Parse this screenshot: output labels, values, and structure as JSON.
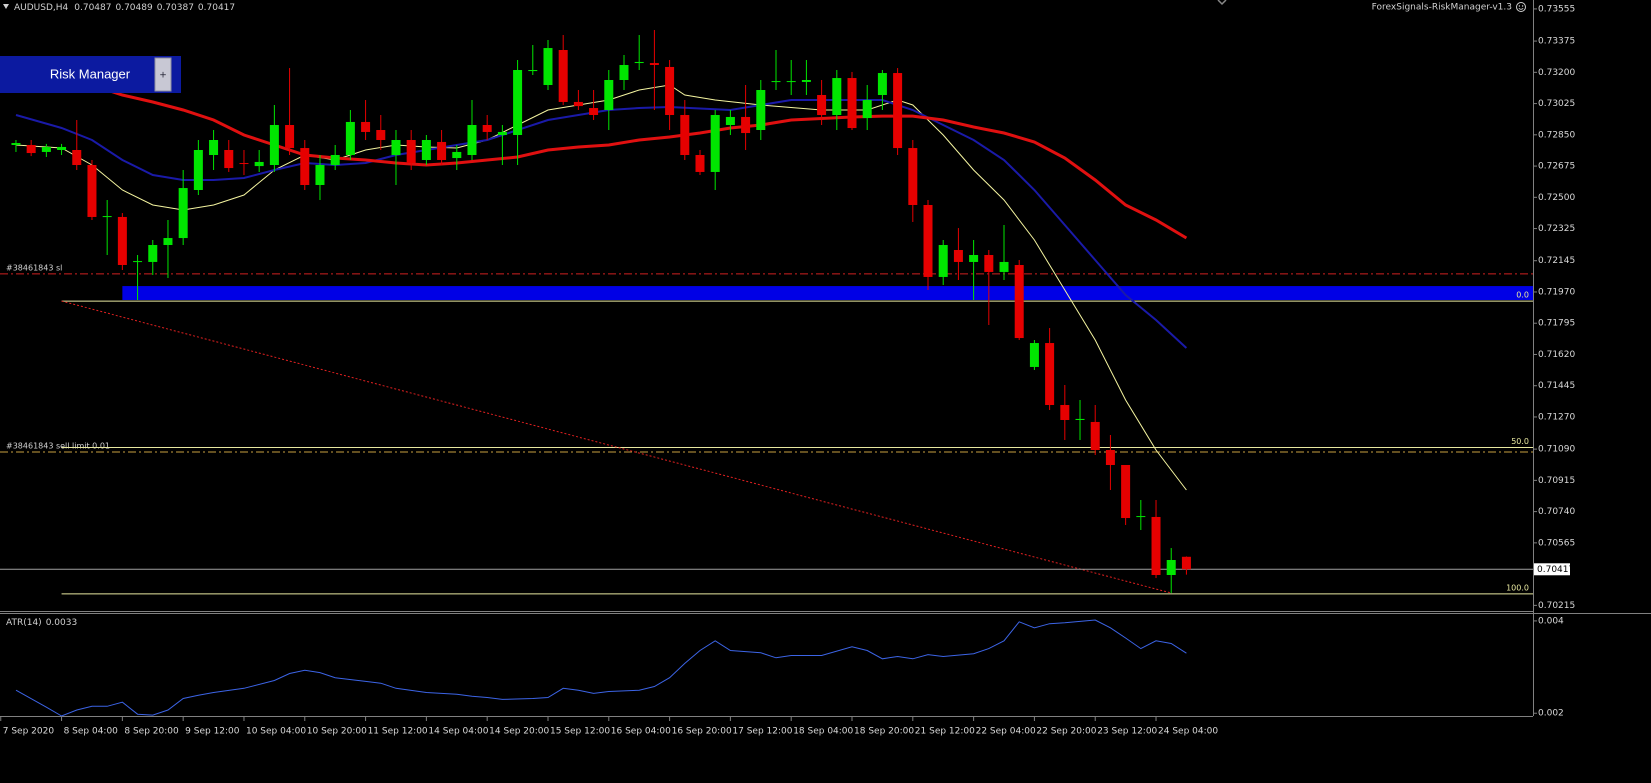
{
  "chart_data": [
    {
      "type": "candlestick",
      "title": "AUDUSD,H4",
      "open": [
        0.72793,
        0.72793,
        0.72754,
        0.72765,
        0.72765,
        0.72681,
        0.7239,
        0.7239,
        0.72138,
        0.72138,
        0.72233,
        0.72272,
        0.72541,
        0.72737,
        0.72765,
        0.72692,
        0.72675,
        0.72681,
        0.72905,
        0.72776,
        0.72569,
        0.72681,
        0.72737,
        0.72922,
        0.72877,
        0.72737,
        0.72821,
        0.72709,
        0.7281,
        0.7272,
        0.72737,
        0.72905,
        0.72849,
        0.72849,
        0.73207,
        0.73129,
        0.73325,
        0.73034,
        0.73,
        0.72989,
        0.73157,
        0.73252,
        0.73252,
        0.7323,
        0.72961,
        0.72737,
        0.72642,
        0.72905,
        0.7295,
        0.72877,
        0.73146,
        0.73146,
        0.73146,
        0.73073,
        0.72961,
        0.73168,
        0.72944,
        0.73073,
        0.73196,
        0.72776,
        0.72457,
        0.72054,
        0.72205,
        0.72138,
        0.72177,
        0.72082,
        0.72121,
        0.7155,
        0.71684,
        0.71337,
        0.71253,
        0.71242,
        0.71085,
        0.71001,
        0.7071,
        0.7071,
        0.70385,
        0.70487
      ],
      "high": [
        0.72821,
        0.72821,
        0.72799,
        0.72799,
        0.72933,
        0.72709,
        0.72485,
        0.72412,
        0.72177,
        0.72261,
        0.72373,
        0.72653,
        0.72821,
        0.72877,
        0.72821,
        0.72765,
        0.72765,
        0.73017,
        0.73224,
        0.72821,
        0.72737,
        0.72793,
        0.72989,
        0.73045,
        0.72961,
        0.72877,
        0.72877,
        0.72849,
        0.72877,
        0.72793,
        0.73045,
        0.72961,
        0.72905,
        0.73269,
        0.73353,
        0.73381,
        0.73409,
        0.73101,
        0.73101,
        0.73213,
        0.73297,
        0.73409,
        0.73437,
        0.73269,
        0.73045,
        0.72765,
        0.72989,
        0.72989,
        0.73129,
        0.73157,
        0.73325,
        0.73269,
        0.73269,
        0.73157,
        0.73213,
        0.73202,
        0.73129,
        0.73213,
        0.73224,
        0.72821,
        0.72485,
        0.72261,
        0.72328,
        0.72261,
        0.72205,
        0.72345,
        0.72149,
        0.71701,
        0.71768,
        0.71449,
        0.71365,
        0.71337,
        0.71169,
        0.71001,
        0.70805,
        0.70805,
        0.70536,
        0.70489
      ],
      "low": [
        0.72754,
        0.72731,
        0.72726,
        0.72737,
        0.72653,
        0.72373,
        0.72177,
        0.72093,
        0.71925,
        0.72065,
        0.72048,
        0.72233,
        0.72513,
        0.72653,
        0.72642,
        0.72625,
        0.72642,
        0.72642,
        0.72737,
        0.72541,
        0.72485,
        0.72653,
        0.72709,
        0.72821,
        0.72765,
        0.72569,
        0.72653,
        0.72681,
        0.72681,
        0.72653,
        0.72709,
        0.72821,
        0.72681,
        0.72681,
        0.73185,
        0.73101,
        0.73017,
        0.72989,
        0.72933,
        0.72877,
        0.73101,
        0.73213,
        0.72989,
        0.72877,
        0.72709,
        0.72625,
        0.72541,
        0.72849,
        0.72765,
        0.72821,
        0.73101,
        0.73073,
        0.73073,
        0.72905,
        0.72877,
        0.72877,
        0.72877,
        0.72989,
        0.72737,
        0.72362,
        0.71981,
        0.72009,
        0.72037,
        0.71925,
        0.71785,
        0.72037,
        0.71701,
        0.71533,
        0.71309,
        0.71141,
        0.71141,
        0.71057,
        0.70861,
        0.70665,
        0.70637,
        0.70368,
        0.70284,
        0.70387
      ],
      "close": [
        0.72804,
        0.72748,
        0.72782,
        0.72782,
        0.72681,
        0.7239,
        0.72395,
        0.72121,
        0.72143,
        0.72233,
        0.72272,
        0.72552,
        0.72765,
        0.72821,
        0.72664,
        0.72687,
        0.72698,
        0.72905,
        0.72776,
        0.72569,
        0.72681,
        0.72737,
        0.72922,
        0.72866,
        0.72821,
        0.72821,
        0.72692,
        0.72821,
        0.72709,
        0.72754,
        0.72905,
        0.72866,
        0.72866,
        0.73213,
        0.73213,
        0.73336,
        0.73034,
        0.73011,
        0.72961,
        0.73157,
        0.73241,
        0.73258,
        0.73241,
        0.72961,
        0.72737,
        0.72642,
        0.72961,
        0.7295,
        0.7286,
        0.73101,
        0.73151,
        0.73151,
        0.73157,
        0.72961,
        0.73168,
        0.72888,
        0.73045,
        0.73196,
        0.72776,
        0.72457,
        0.72054,
        0.72233,
        0.72138,
        0.72177,
        0.72082,
        0.72138,
        0.71712,
        0.71684,
        0.71337,
        0.71253,
        0.71259,
        0.71085,
        0.71001,
        0.70704,
        0.70715,
        0.70385,
        0.70469,
        0.70417
      ],
      "up_color": "#00e600",
      "down_color": "#e60000",
      "series": [
        {
          "color": "#f5f5a0",
          "x": [
            0,
            3,
            5,
            7,
            9,
            11,
            13,
            15,
            17,
            19,
            21,
            23,
            25,
            27,
            29,
            31,
            33,
            35,
            37,
            39,
            41,
            43,
            44,
            46,
            49,
            53,
            56,
            58,
            59,
            61,
            63,
            65,
            67,
            69,
            71,
            73,
            75,
            77
          ],
          "values": [
            0.72793,
            0.72776,
            0.72681,
            0.72541,
            0.72457,
            0.72429,
            0.72457,
            0.72513,
            0.72653,
            0.72737,
            0.72709,
            0.72765,
            0.72793,
            0.72782,
            0.72776,
            0.72821,
            0.72905,
            0.72989,
            0.73017,
            0.73045,
            0.73101,
            0.73129,
            0.73073,
            0.73045,
            0.73017,
            0.72989,
            0.72989,
            0.73045,
            0.73017,
            0.72849,
            0.72653,
            0.72485,
            0.72261,
            0.71981,
            0.71701,
            0.71365,
            0.71085,
            0.70861
          ],
          "width": 1
        },
        {
          "color": "#1a1aa8",
          "x": [
            0,
            3,
            5,
            7,
            9,
            11,
            13,
            15,
            17,
            19,
            21,
            23,
            25,
            27,
            29,
            31,
            33,
            35,
            37,
            39,
            41,
            43,
            47,
            49,
            51,
            55,
            57,
            59,
            61,
            63,
            65,
            67,
            69,
            71,
            73,
            75,
            77
          ],
          "values": [
            0.72961,
            0.72888,
            0.72821,
            0.72709,
            0.72625,
            0.72597,
            0.72597,
            0.72608,
            0.72653,
            0.72692,
            0.72681,
            0.72692,
            0.72737,
            0.72765,
            0.72793,
            0.72821,
            0.72877,
            0.72933,
            0.72961,
            0.72989,
            0.73,
            0.73006,
            0.72989,
            0.73017,
            0.73045,
            0.73045,
            0.73045,
            0.72989,
            0.72905,
            0.72821,
            0.72709,
            0.72541,
            0.72345,
            0.72149,
            0.71953,
            0.71813,
            0.71656
          ],
          "width": 2
        },
        {
          "color": "#e01010",
          "x": [
            0,
            7,
            9,
            11,
            13,
            15,
            17,
            19,
            21,
            23,
            25,
            27,
            29,
            31,
            33,
            35,
            37,
            39,
            41,
            43,
            45,
            47,
            49,
            51,
            55,
            57,
            59,
            61,
            63,
            65,
            67,
            69,
            71,
            73,
            75,
            77
          ],
          "values": [
            0.73269,
            0.73073,
            0.73034,
            0.72989,
            0.72933,
            0.72849,
            0.72793,
            0.72737,
            0.7272,
            0.72709,
            0.72692,
            0.72681,
            0.72692,
            0.72709,
            0.72726,
            0.72765,
            0.72782,
            0.72793,
            0.72821,
            0.72838,
            0.7286,
            0.72888,
            0.72905,
            0.72933,
            0.7295,
            0.72955,
            0.72955,
            0.72933,
            0.72894,
            0.7286,
            0.7281,
            0.7272,
            0.72597,
            0.72457,
            0.72373,
            0.72272
          ],
          "width": 3
        }
      ],
      "levels": [
        {
          "label": "#38461843 sl",
          "value": 0.72071,
          "color": "#d02020"
        },
        {
          "label": "#38461843 sell limit 0.01",
          "value": 0.71074,
          "color": "#c8a040"
        }
      ],
      "fib_levels": [
        {
          "label": "0.0",
          "price": 0.71919
        },
        {
          "label": "50.0",
          "price": 0.71099
        },
        {
          "label": "100.0",
          "price": 0.70279
        }
      ],
      "fib_start": 3,
      "fib_color": "#e8e8a0",
      "trendline": {
        "x": [
          3,
          76
        ],
        "values": [
          0.71919,
          0.70284
        ],
        "color": "#e02020"
      },
      "zone": {
        "x": 7,
        "values": [
          0.71925,
          0.72003
        ],
        "color": "#0000e6"
      },
      "ylim": [
        0.70189,
        0.73605
      ],
      "yticks": [
        0.73555,
        0.73375,
        {
          "value": 0.732,
          "label": "0.73200"
        },
        0.73025,
        {
          "value": 0.7285,
          "label": "0.72850"
        },
        0.72675,
        {
          "value": 0.725,
          "label": "0.72500"
        },
        0.72325,
        0.72145,
        {
          "value": 0.7197,
          "label": "0.71970"
        },
        0.71795,
        {
          "value": 0.7162,
          "label": "0.71620"
        },
        0.71445,
        {
          "value": 0.7127,
          "label": "0.71270"
        },
        {
          "value": 0.7109,
          "label": "0.71090"
        },
        0.70915,
        {
          "value": 0.7074,
          "label": "0.70740"
        },
        0.70565,
        0.70215
      ],
      "xlim": [
        -1.05,
        99.8
      ],
      "xticks": [
        {
          "value": -1,
          "label": "7 Sep 2020"
        },
        {
          "value": 3,
          "label": "8 Sep 04:00"
        },
        {
          "value": 7,
          "label": "8 Sep 20:00"
        },
        {
          "value": 11,
          "label": "9 Sep 12:00"
        },
        {
          "value": 15,
          "label": "10 Sep 04:00"
        },
        {
          "value": 19,
          "label": "10 Sep 20:00"
        },
        {
          "value": 23,
          "label": "11 Sep 12:00"
        },
        {
          "value": 27,
          "label": "14 Sep 04:00"
        },
        {
          "value": 31,
          "label": "14 Sep 20:00"
        },
        {
          "value": 35,
          "label": "15 Sep 12:00"
        },
        {
          "value": 39,
          "label": "16 Sep 04:00"
        },
        {
          "value": 43,
          "label": "16 Sep 20:00"
        },
        {
          "value": 47,
          "label": "17 Sep 12:00"
        },
        {
          "value": 51,
          "label": "18 Sep 04:00"
        },
        {
          "value": 55,
          "label": "18 Sep 20:00"
        },
        {
          "value": 59,
          "label": "21 Sep 12:00"
        },
        {
          "value": 63,
          "label": "22 Sep 04:00"
        },
        {
          "value": 67,
          "label": "22 Sep 20:00"
        },
        {
          "value": 71,
          "label": "23 Sep 12:00"
        },
        {
          "value": 75,
          "label": "24 Sep 04:00"
        }
      ]
    },
    {
      "type": "line",
      "title": "ATR(14)",
      "color": "#3c64e6",
      "x": [
        0,
        2,
        3,
        4,
        5,
        6,
        7,
        8,
        9,
        10,
        11,
        12,
        13,
        15,
        17,
        18,
        19,
        20,
        21,
        23,
        24,
        25,
        27,
        29,
        30,
        31,
        32,
        34,
        35,
        36,
        37,
        38,
        39,
        41,
        42,
        43,
        44,
        45,
        46,
        47,
        49,
        50,
        51,
        53,
        55,
        56,
        57,
        58,
        59,
        60,
        61,
        63,
        64,
        65,
        66,
        67,
        68,
        69,
        71,
        72,
        73,
        74,
        75,
        76,
        77
      ],
      "values": [
        0.0025,
        0.00213,
        0.00194,
        0.00207,
        0.00215,
        0.00215,
        0.00224,
        0.00198,
        0.00196,
        0.00207,
        0.00232,
        0.00239,
        0.00245,
        0.00254,
        0.00271,
        0.00286,
        0.00293,
        0.00288,
        0.00277,
        0.00269,
        0.00265,
        0.00254,
        0.00245,
        0.00241,
        0.00237,
        0.00234,
        0.0023,
        0.00232,
        0.00234,
        0.00254,
        0.0025,
        0.00243,
        0.00247,
        0.0025,
        0.00258,
        0.00277,
        0.00308,
        0.00336,
        0.00357,
        0.00336,
        0.00331,
        0.0032,
        0.00325,
        0.00325,
        0.00344,
        0.00336,
        0.00318,
        0.00323,
        0.00318,
        0.00327,
        0.00323,
        0.00329,
        0.0034,
        0.00357,
        0.00398,
        0.00385,
        0.00394,
        0.00396,
        0.00402,
        0.00385,
        0.00363,
        0.0034,
        0.00357,
        0.00351,
        0.0033
      ],
      "ylim": [
        0.00194,
        0.00415
      ],
      "yticks": [
        0.004,
        0.002
      ],
      "xlim": [
        -1.05,
        99.8
      ]
    }
  ],
  "panel": {
    "title": "Risk Manager",
    "button": "+"
  },
  "ea_label": "ForexSignals-RiskManager-v1.3"
}
